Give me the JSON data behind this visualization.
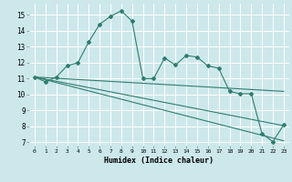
{
  "title": "",
  "xlabel": "Humidex (Indice chaleur)",
  "background_color": "#cde8eb",
  "grid_color": "#ffffff",
  "line_color": "#2e7d6e",
  "xlim": [
    -0.5,
    23.5
  ],
  "ylim": [
    6.8,
    15.7
  ],
  "yticks": [
    7,
    8,
    9,
    10,
    11,
    12,
    13,
    14,
    15
  ],
  "xticks": [
    0,
    1,
    2,
    3,
    4,
    5,
    6,
    7,
    8,
    9,
    10,
    11,
    12,
    13,
    14,
    15,
    16,
    17,
    18,
    19,
    20,
    21,
    22,
    23
  ],
  "series1_x": [
    0,
    1,
    2,
    3,
    4,
    5,
    6,
    7,
    8,
    9,
    10,
    11,
    12,
    13,
    14,
    15,
    16,
    17,
    18,
    19,
    20,
    21,
    22,
    23
  ],
  "series1_y": [
    11.1,
    10.8,
    11.1,
    11.8,
    12.0,
    13.3,
    14.4,
    14.9,
    15.25,
    14.6,
    11.0,
    11.0,
    12.3,
    11.85,
    12.45,
    12.35,
    11.8,
    11.65,
    10.2,
    10.05,
    10.05,
    7.55,
    7.05,
    8.1
  ],
  "series2_x": [
    0,
    23
  ],
  "series2_y": [
    11.1,
    10.2
  ],
  "series3_x": [
    0,
    23
  ],
  "series3_y": [
    11.1,
    8.05
  ],
  "series4_x": [
    0,
    23
  ],
  "series4_y": [
    11.1,
    7.1
  ]
}
